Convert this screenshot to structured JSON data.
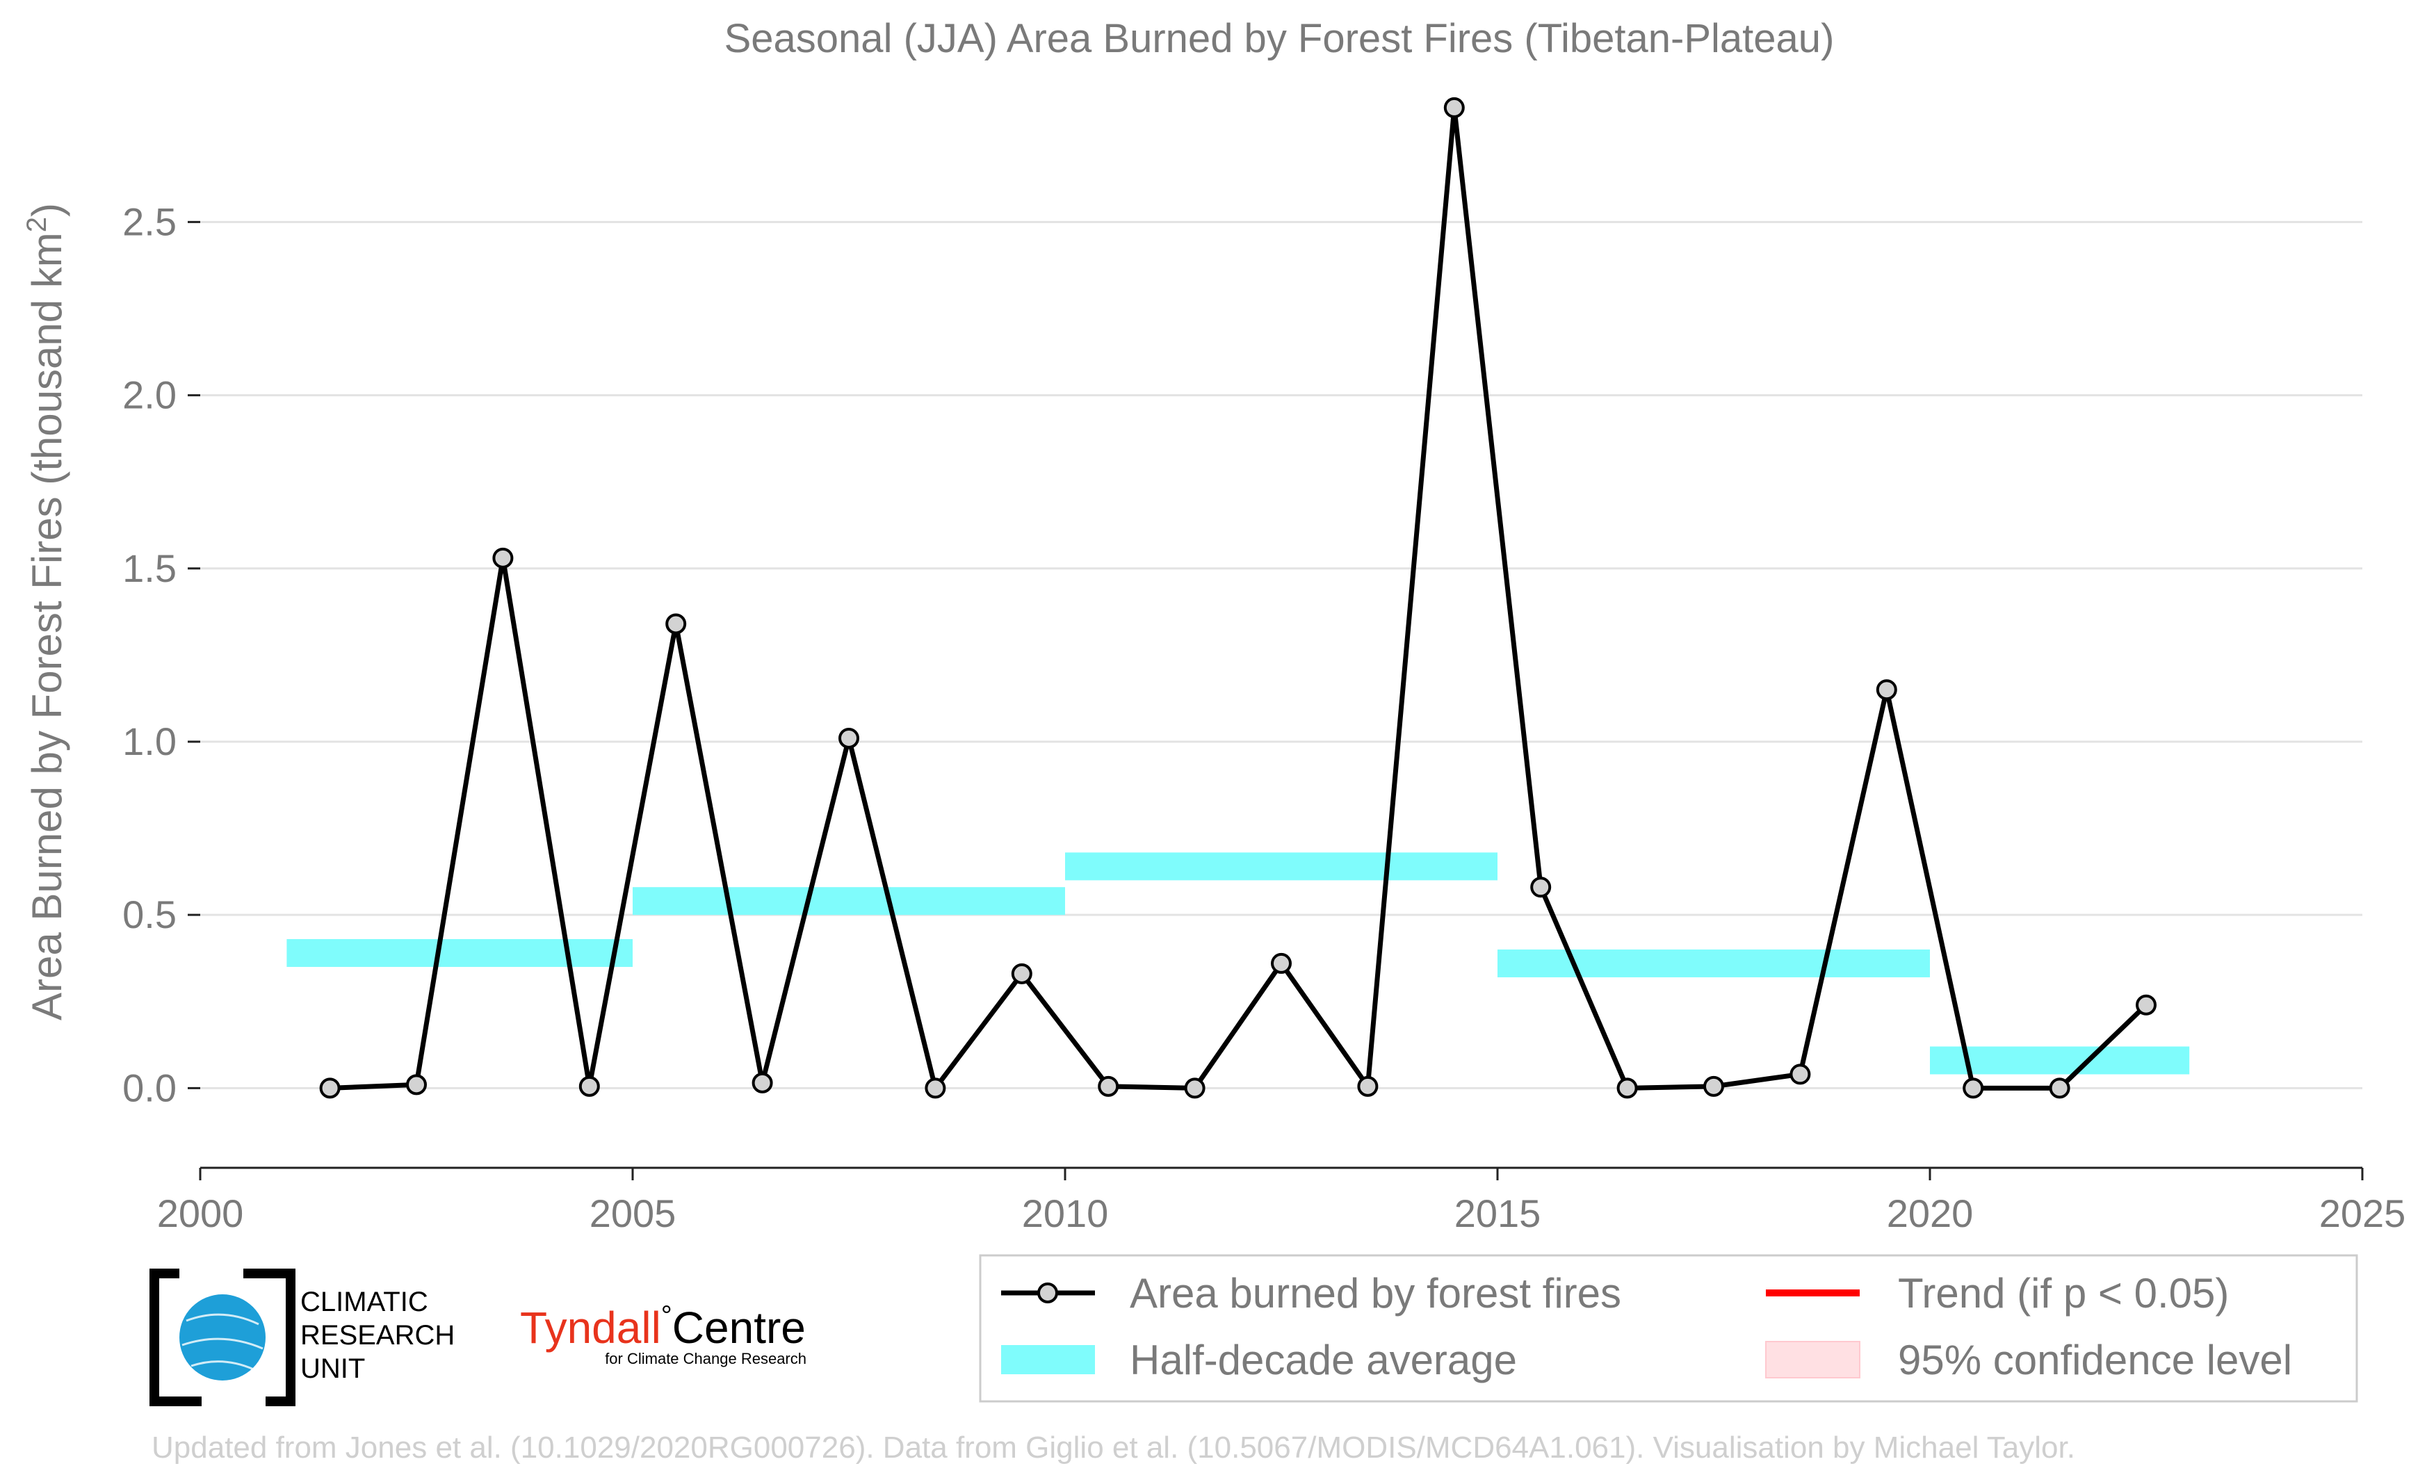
{
  "chart_data": {
    "type": "line",
    "title": "Seasonal (JJA) Area Burned by Forest Fires (Tibetan-Plateau)",
    "ylabel": "Area Burned by Forest Fires (thousand km",
    "ylabel_sup": "2",
    "ylabel_close": ")",
    "xlabel": "",
    "xlim": [
      2000,
      2025
    ],
    "ylim": [
      -0.22,
      2.88
    ],
    "x_ticks": [
      2000,
      2005,
      2010,
      2015,
      2020,
      2025
    ],
    "y_ticks": [
      0.0,
      0.5,
      1.0,
      1.5,
      2.0,
      2.5
    ],
    "y_tick_labels": [
      "0.0",
      "0.5",
      "1.0",
      "1.5",
      "2.0",
      "2.5"
    ],
    "grid": "horizontal",
    "series": [
      {
        "name": "Area burned by forest fires",
        "color": "#000000",
        "x": [
          2001.5,
          2002.5,
          2003.5,
          2004.5,
          2005.5,
          2006.5,
          2007.5,
          2008.5,
          2009.5,
          2010.5,
          2011.5,
          2012.5,
          2013.5,
          2014.5,
          2015.5,
          2016.5,
          2017.5,
          2018.5,
          2019.5,
          2020.5,
          2021.5,
          2022.5
        ],
        "y": [
          0.0,
          0.01,
          1.53,
          0.005,
          1.34,
          0.015,
          1.01,
          0.0,
          0.33,
          0.005,
          0.0,
          0.36,
          0.005,
          2.83,
          0.58,
          0.0,
          0.005,
          0.04,
          1.15,
          0.0,
          0.0,
          0.24
        ]
      },
      {
        "name": "Half-decade average",
        "color": "#7ffcfc",
        "segments": [
          {
            "x_start": 2001,
            "x_end": 2005,
            "value": 0.39
          },
          {
            "x_start": 2005,
            "x_end": 2010,
            "value": 0.54
          },
          {
            "x_start": 2010,
            "x_end": 2015,
            "value": 0.64
          },
          {
            "x_start": 2015,
            "x_end": 2020,
            "value": 0.36
          },
          {
            "x_start": 2020,
            "x_end": 2023,
            "value": 0.08
          }
        ]
      }
    ],
    "legend": {
      "placement": "bottom-right",
      "entries": [
        {
          "label": "Area burned by forest fires",
          "kind": "line-marker",
          "color": "#000000"
        },
        {
          "label": "Trend (if p < 0.05)",
          "kind": "line",
          "color": "#ff0000"
        },
        {
          "label": "Half-decade average",
          "kind": "band",
          "color": "#7ffcfc"
        },
        {
          "label": "95% confidence level",
          "kind": "band",
          "color": "#ffe0e3"
        }
      ]
    }
  },
  "logos": {
    "cru_line1": "CLIMATIC",
    "cru_line2": "RESEARCH",
    "cru_line3": "UNIT",
    "tyndall_main": "Tyndall",
    "tyndall_degree": "°",
    "tyndall_centre": "Centre",
    "tyndall_sub": "for Climate Change Research"
  },
  "footer": "Updated from Jones et al. (10.1029/2020RG000726). Data from Giglio et al. (10.5067/MODIS/MCD64A1.061). Visualisation by Michael Taylor.",
  "colors": {
    "tyndall_red": "#e8331c",
    "cru_blue": "#1e9fd8"
  }
}
